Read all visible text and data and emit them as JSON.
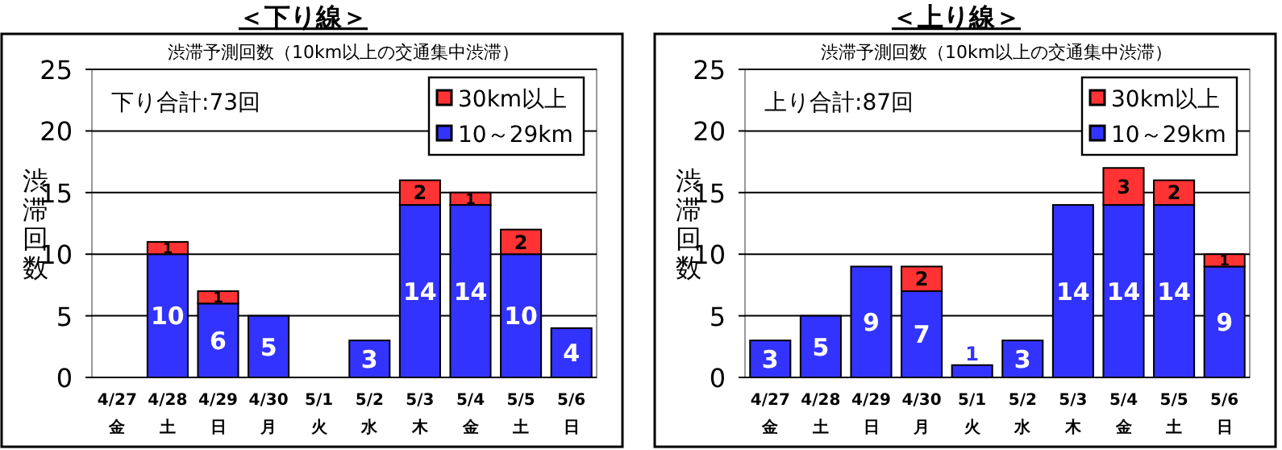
{
  "chart_data": [
    {
      "type": "bar",
      "stacked": true,
      "title": "＜下り線＞",
      "subtitle": "渋滞予測回数（10km以上の交通集中渋滞）",
      "ylabel": "渋滞回数",
      "annotations": [
        "下り合計:73回"
      ],
      "categories": [
        "4/27\n金",
        "4/28\n土",
        "4/29\n日",
        "4/30\n月",
        "5/1\n火",
        "5/2\n水",
        "5/3\n木",
        "5/4\n金",
        "5/5\n土",
        "5/6\n日"
      ],
      "series": [
        {
          "name": "10～29km",
          "color": "#3333ff",
          "values": [
            0,
            10,
            6,
            5,
            0,
            3,
            14,
            14,
            10,
            4
          ],
          "value_labels": [
            null,
            "10",
            "6",
            "5",
            null,
            "3",
            "14",
            "14",
            "10",
            "4"
          ]
        },
        {
          "name": "30km以上",
          "color": "#ff3333",
          "values": [
            0,
            1,
            1,
            0,
            0,
            0,
            2,
            1,
            2,
            0
          ],
          "value_labels": [
            null,
            "1",
            "1",
            null,
            null,
            null,
            "2",
            "1",
            "2",
            null
          ]
        }
      ],
      "ylim": [
        0,
        25
      ],
      "yticks": [
        0,
        5,
        10,
        15,
        20,
        25
      ],
      "grid": "y",
      "legend": "top right"
    },
    {
      "type": "bar",
      "stacked": true,
      "title": "＜上り線＞",
      "subtitle": "渋滞予測回数（10km以上の交通集中渋滞）",
      "ylabel": "渋滞回数",
      "annotations": [
        "上り合計:87回"
      ],
      "categories": [
        "4/27\n金",
        "4/28\n土",
        "4/29\n日",
        "4/30\n月",
        "5/1\n火",
        "5/2\n水",
        "5/3\n木",
        "5/4\n金",
        "5/5\n土",
        "5/6\n日"
      ],
      "series": [
        {
          "name": "10～29km",
          "color": "#3333ff",
          "values": [
            3,
            5,
            9,
            7,
            1,
            3,
            14,
            14,
            14,
            9
          ],
          "value_labels": [
            "3",
            "5",
            "9",
            "7",
            "1",
            "3",
            "14",
            "14",
            "14",
            "9"
          ]
        },
        {
          "name": "30km以上",
          "color": "#ff3333",
          "values": [
            0,
            0,
            0,
            2,
            0,
            0,
            0,
            3,
            2,
            1
          ],
          "value_labels": [
            null,
            null,
            null,
            "2",
            null,
            null,
            null,
            "3",
            "2",
            "1"
          ]
        }
      ],
      "ylim": [
        0,
        25
      ],
      "yticks": [
        0,
        5,
        10,
        15,
        20,
        25
      ],
      "grid": "y",
      "legend": "top right"
    }
  ]
}
